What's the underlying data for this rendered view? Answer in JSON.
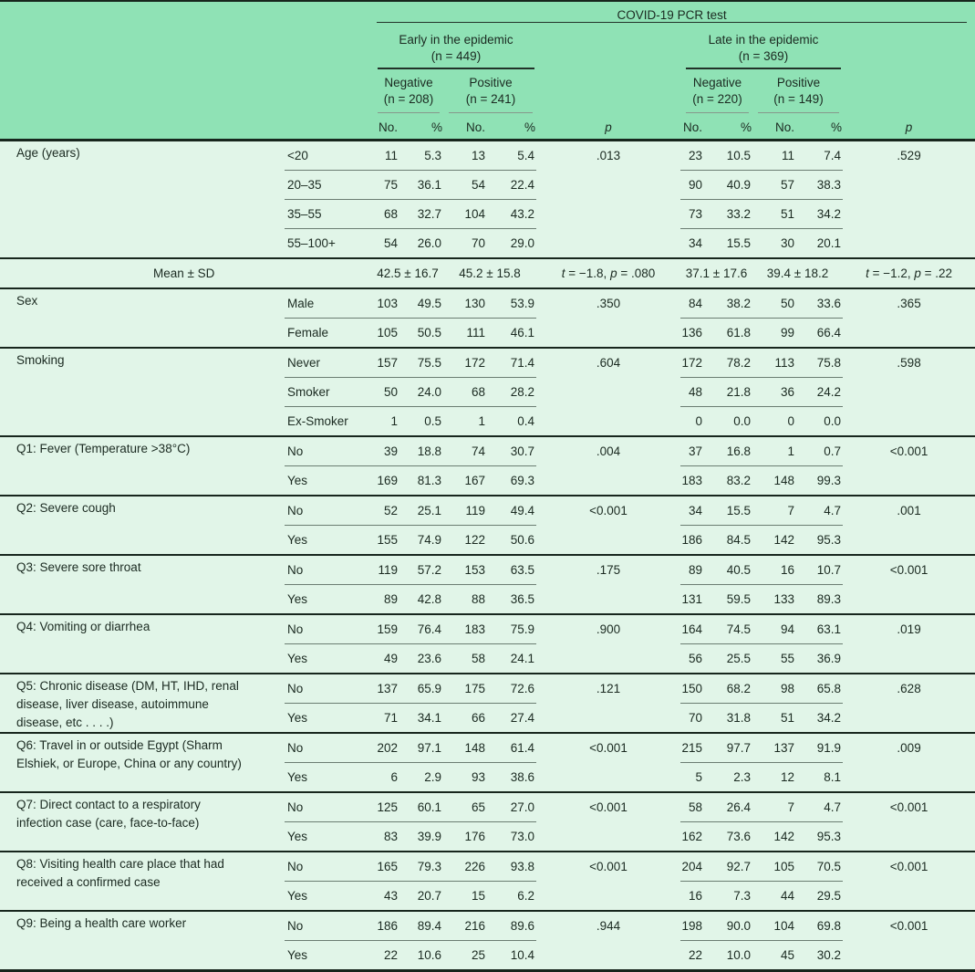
{
  "colors": {
    "header_green": "#8fe2b5",
    "row_green": "#e1f5e8",
    "rule_dark": "#17261d",
    "hairline": "#6b7d72",
    "text": "#1b2a21"
  },
  "header": {
    "title": "COVID-19 PCR test",
    "groups": [
      {
        "label": "Early in the epidemic",
        "n": "(n = 449)"
      },
      {
        "label": "Late in the epidemic",
        "n": "(n = 369)"
      }
    ],
    "subgroups": [
      {
        "label": "Negative",
        "n": "(n = 208)"
      },
      {
        "label": "Positive",
        "n": "(n = 241)"
      },
      {
        "label": "Negative",
        "n": "(n = 220)"
      },
      {
        "label": "Positive",
        "n": "(n = 149)"
      }
    ],
    "no_label": "No.",
    "pct_label": "%",
    "p_label": "p"
  },
  "body": {
    "groups": [
      {
        "label": [
          "Age (years)"
        ],
        "rows": [
          [
            "<20",
            "11",
            "5.3",
            "13",
            "5.4",
            ".013",
            "23",
            "10.5",
            "11",
            "7.4",
            ".529"
          ],
          [
            "20–35",
            "75",
            "36.1",
            "54",
            "22.4",
            "",
            "90",
            "40.9",
            "57",
            "38.3",
            ""
          ],
          [
            "35–55",
            "68",
            "32.7",
            "104",
            "43.2",
            "",
            "73",
            "33.2",
            "51",
            "34.2",
            ""
          ],
          [
            "55–100+",
            "54",
            "26.0",
            "70",
            "29.0",
            "",
            "34",
            "15.5",
            "30",
            "20.1",
            ""
          ]
        ]
      },
      {
        "type": "mean",
        "label": "Mean ± SD",
        "cells": [
          "42.5 ± 16.7",
          "45.2 ± 15.8",
          "t = −1.8, p = .080",
          "37.1 ± 17.6",
          "39.4 ± 18.2",
          "t = −1.2, p = .22"
        ]
      },
      {
        "label": [
          "Sex"
        ],
        "rows": [
          [
            "Male",
            "103",
            "49.5",
            "130",
            "53.9",
            ".350",
            "84",
            "38.2",
            "50",
            "33.6",
            ".365"
          ],
          [
            "Female",
            "105",
            "50.5",
            "111",
            "46.1",
            "",
            "136",
            "61.8",
            "99",
            "66.4",
            ""
          ]
        ]
      },
      {
        "label": [
          "Smoking"
        ],
        "rows": [
          [
            "Never",
            "157",
            "75.5",
            "172",
            "71.4",
            ".604",
            "172",
            "78.2",
            "113",
            "75.8",
            ".598"
          ],
          [
            "Smoker",
            "50",
            "24.0",
            "68",
            "28.2",
            "",
            "48",
            "21.8",
            "36",
            "24.2",
            ""
          ],
          [
            "Ex-Smoker",
            "1",
            "0.5",
            "1",
            "0.4",
            "",
            "0",
            "0.0",
            "0",
            "0.0",
            ""
          ]
        ]
      },
      {
        "label": [
          "Q1: Fever (Temperature >38°C)"
        ],
        "rows": [
          [
            "No",
            "39",
            "18.8",
            "74",
            "30.7",
            ".004",
            "37",
            "16.8",
            "1",
            "0.7",
            "<0.001"
          ],
          [
            "Yes",
            "169",
            "81.3",
            "167",
            "69.3",
            "",
            "183",
            "83.2",
            "148",
            "99.3",
            ""
          ]
        ]
      },
      {
        "label": [
          "Q2: Severe cough"
        ],
        "rows": [
          [
            "No",
            "52",
            "25.1",
            "119",
            "49.4",
            "<0.001",
            "34",
            "15.5",
            "7",
            "4.7",
            ".001"
          ],
          [
            "Yes",
            "155",
            "74.9",
            "122",
            "50.6",
            "",
            "186",
            "84.5",
            "142",
            "95.3",
            ""
          ]
        ]
      },
      {
        "label": [
          "Q3: Severe sore throat"
        ],
        "rows": [
          [
            "No",
            "119",
            "57.2",
            "153",
            "63.5",
            ".175",
            "89",
            "40.5",
            "16",
            "10.7",
            "<0.001"
          ],
          [
            "Yes",
            "89",
            "42.8",
            "88",
            "36.5",
            "",
            "131",
            "59.5",
            "133",
            "89.3",
            ""
          ]
        ]
      },
      {
        "label": [
          "Q4: Vomiting or diarrhea"
        ],
        "rows": [
          [
            "No",
            "159",
            "76.4",
            "183",
            "75.9",
            ".900",
            "164",
            "74.5",
            "94",
            "63.1",
            ".019"
          ],
          [
            "Yes",
            "49",
            "23.6",
            "58",
            "24.1",
            "",
            "56",
            "25.5",
            "55",
            "36.9",
            ""
          ]
        ]
      },
      {
        "label": [
          "Q5: Chronic disease (DM, HT, IHD, renal",
          "disease, liver disease, autoimmune",
          "disease, etc . . . .)"
        ],
        "rows": [
          [
            "No",
            "137",
            "65.9",
            "175",
            "72.6",
            ".121",
            "150",
            "68.2",
            "98",
            "65.8",
            ".628"
          ],
          [
            "Yes",
            "71",
            "34.1",
            "66",
            "27.4",
            "",
            "70",
            "31.8",
            "51",
            "34.2",
            ""
          ]
        ]
      },
      {
        "label": [
          "Q6: Travel in or outside Egypt (Sharm",
          "Elshiek, or Europe, China or any country)"
        ],
        "rows": [
          [
            "No",
            "202",
            "97.1",
            "148",
            "61.4",
            "<0.001",
            "215",
            "97.7",
            "137",
            "91.9",
            ".009"
          ],
          [
            "Yes",
            "6",
            "2.9",
            "93",
            "38.6",
            "",
            "5",
            "2.3",
            "12",
            "8.1",
            ""
          ]
        ]
      },
      {
        "label": [
          "Q7: Direct contact to a respiratory",
          "infection case (care, face-to-face)"
        ],
        "rows": [
          [
            "No",
            "125",
            "60.1",
            "65",
            "27.0",
            "<0.001",
            "58",
            "26.4",
            "7",
            "4.7",
            "<0.001"
          ],
          [
            "Yes",
            "83",
            "39.9",
            "176",
            "73.0",
            "",
            "162",
            "73.6",
            "142",
            "95.3",
            ""
          ]
        ]
      },
      {
        "label": [
          "Q8: Visiting health care place that had",
          "received a confirmed case"
        ],
        "rows": [
          [
            "No",
            "165",
            "79.3",
            "226",
            "93.8",
            "<0.001",
            "204",
            "92.7",
            "105",
            "70.5",
            "<0.001"
          ],
          [
            "Yes",
            "43",
            "20.7",
            "15",
            "6.2",
            "",
            "16",
            "7.3",
            "44",
            "29.5",
            ""
          ]
        ]
      },
      {
        "label": [
          "Q9: Being a health care worker"
        ],
        "rows": [
          [
            "No",
            "186",
            "89.4",
            "216",
            "89.6",
            ".944",
            "198",
            "90.0",
            "104",
            "69.8",
            "<0.001"
          ],
          [
            "Yes",
            "22",
            "10.6",
            "25",
            "10.4",
            "",
            "22",
            "10.0",
            "45",
            "30.2",
            ""
          ]
        ]
      }
    ]
  }
}
